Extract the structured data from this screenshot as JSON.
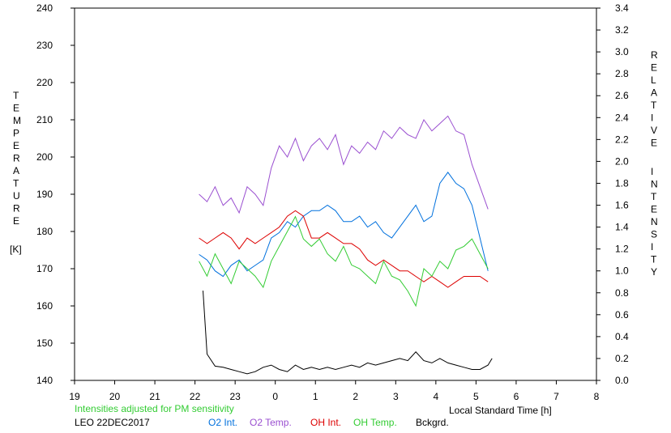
{
  "chart_data": {
    "type": "line",
    "left_axis": {
      "label_letters": [
        "T",
        "E",
        "M",
        "P",
        "E",
        "R",
        "A",
        "T",
        "U",
        "R",
        "E"
      ],
      "unit": "[K]",
      "ylim": [
        140,
        240
      ],
      "ticks": [
        "140",
        "150",
        "160",
        "170",
        "180",
        "190",
        "200",
        "210",
        "220",
        "230",
        "240"
      ]
    },
    "right_axis": {
      "label_letters_1": [
        "R",
        "E",
        "L",
        "A",
        "T",
        "I",
        "V",
        "E"
      ],
      "label_letters_2": [
        "I",
        "N",
        "T",
        "E",
        "N",
        "S",
        "I",
        "T",
        "Y"
      ],
      "ylim": [
        0,
        3.4
      ],
      "ticks": [
        "0.0",
        "0.2",
        "0.4",
        "0.6",
        "0.8",
        "1.0",
        "1.2",
        "1.4",
        "1.6",
        "1.8",
        "2.0",
        "2.2",
        "2.4",
        "2.6",
        "2.8",
        "3.0",
        "3.2",
        "3.4"
      ]
    },
    "x_axis": {
      "label": "Local Standard Time [h]",
      "ticks": [
        "19",
        "20",
        "21",
        "22",
        "23",
        "0",
        "1",
        "2",
        "3",
        "4",
        "5",
        "6",
        "7",
        "8"
      ]
    },
    "note": "Intensities adjusted for PM sensitivity",
    "station": "LEO 22DEC2017",
    "legend": [
      {
        "name": "O2 Int.",
        "color": "#0070dd"
      },
      {
        "name": "O2 Temp.",
        "color": "#9a4fd0"
      },
      {
        "name": "OH Int.",
        "color": "#dd0000"
      },
      {
        "name": "OH Temp.",
        "color": "#33cc33"
      },
      {
        "name": "Bckgrd.",
        "color": "#000000"
      }
    ],
    "x_range_hours": [
      -5,
      8
    ],
    "series": [
      {
        "name": "O2 Temp.",
        "axis": "left",
        "color": "#9a4fd0",
        "x": [
          -1.9,
          -1.7,
          -1.5,
          -1.3,
          -1.1,
          -0.9,
          -0.7,
          -0.5,
          -0.3,
          -0.1,
          0.1,
          0.3,
          0.5,
          0.7,
          0.9,
          1.1,
          1.3,
          1.5,
          1.7,
          1.9,
          2.1,
          2.3,
          2.5,
          2.7,
          2.9,
          3.1,
          3.3,
          3.5,
          3.7,
          3.9,
          4.1,
          4.3,
          4.5,
          4.7,
          4.9,
          5.1,
          5.3
        ],
        "y": [
          190,
          188,
          192,
          187,
          189,
          185,
          192,
          190,
          187,
          197,
          203,
          200,
          205,
          199,
          203,
          205,
          202,
          206,
          198,
          203,
          201,
          204,
          202,
          207,
          205,
          208,
          206,
          205,
          210,
          207,
          209,
          211,
          207,
          206,
          198,
          192,
          186
        ]
      },
      {
        "name": "O2 Int.",
        "axis": "right",
        "color": "#0070dd",
        "x": [
          -1.9,
          -1.7,
          -1.5,
          -1.3,
          -1.1,
          -0.9,
          -0.7,
          -0.5,
          -0.3,
          -0.1,
          0.1,
          0.3,
          0.5,
          0.7,
          0.9,
          1.1,
          1.3,
          1.5,
          1.7,
          1.9,
          2.1,
          2.3,
          2.5,
          2.7,
          2.9,
          3.1,
          3.3,
          3.5,
          3.7,
          3.9,
          4.1,
          4.3,
          4.5,
          4.7,
          4.9,
          5.1,
          5.3
        ],
        "y": [
          1.15,
          1.1,
          1.0,
          0.95,
          1.05,
          1.1,
          1.0,
          1.05,
          1.1,
          1.3,
          1.35,
          1.45,
          1.4,
          1.5,
          1.55,
          1.55,
          1.6,
          1.55,
          1.45,
          1.45,
          1.5,
          1.4,
          1.45,
          1.35,
          1.3,
          1.4,
          1.5,
          1.6,
          1.45,
          1.5,
          1.8,
          1.9,
          1.8,
          1.75,
          1.6,
          1.3,
          1.0
        ]
      },
      {
        "name": "OH Int.",
        "axis": "right",
        "color": "#dd0000",
        "x": [
          -1.9,
          -1.7,
          -1.5,
          -1.3,
          -1.1,
          -0.9,
          -0.7,
          -0.5,
          -0.3,
          -0.1,
          0.1,
          0.3,
          0.5,
          0.7,
          0.9,
          1.1,
          1.3,
          1.5,
          1.7,
          1.9,
          2.1,
          2.3,
          2.5,
          2.7,
          2.9,
          3.1,
          3.3,
          3.5,
          3.7,
          3.9,
          4.1,
          4.3,
          4.5,
          4.7,
          4.9,
          5.1,
          5.3
        ],
        "y": [
          1.3,
          1.25,
          1.3,
          1.35,
          1.3,
          1.2,
          1.3,
          1.25,
          1.3,
          1.35,
          1.4,
          1.5,
          1.55,
          1.5,
          1.3,
          1.3,
          1.35,
          1.3,
          1.25,
          1.25,
          1.2,
          1.1,
          1.05,
          1.1,
          1.05,
          1.0,
          1.0,
          0.95,
          0.9,
          0.95,
          0.9,
          0.85,
          0.9,
          0.95,
          0.95,
          0.95,
          0.9
        ]
      },
      {
        "name": "OH Temp.",
        "axis": "left",
        "color": "#33cc33",
        "x": [
          -1.9,
          -1.7,
          -1.5,
          -1.3,
          -1.1,
          -0.9,
          -0.7,
          -0.5,
          -0.3,
          -0.1,
          0.1,
          0.3,
          0.5,
          0.7,
          0.9,
          1.1,
          1.3,
          1.5,
          1.7,
          1.9,
          2.1,
          2.3,
          2.5,
          2.7,
          2.9,
          3.1,
          3.3,
          3.5,
          3.7,
          3.9,
          4.1,
          4.3,
          4.5,
          4.7,
          4.9,
          5.1,
          5.3
        ],
        "y": [
          172,
          168,
          174,
          170,
          166,
          172,
          170,
          168,
          165,
          172,
          176,
          180,
          184,
          178,
          176,
          178,
          174,
          172,
          176,
          171,
          170,
          168,
          166,
          172,
          168,
          167,
          164,
          160,
          170,
          168,
          172,
          170,
          175,
          176,
          178,
          174,
          170
        ]
      },
      {
        "name": "Bckgrd.",
        "axis": "right",
        "color": "#000000",
        "x": [
          -1.8,
          -1.7,
          -1.5,
          -1.3,
          -1.1,
          -0.9,
          -0.7,
          -0.5,
          -0.3,
          -0.1,
          0.1,
          0.3,
          0.5,
          0.7,
          0.9,
          1.1,
          1.3,
          1.5,
          1.7,
          1.9,
          2.1,
          2.3,
          2.5,
          2.7,
          2.9,
          3.1,
          3.3,
          3.5,
          3.7,
          3.9,
          4.1,
          4.3,
          4.5,
          4.7,
          4.9,
          5.1,
          5.3,
          5.4
        ],
        "y": [
          0.82,
          0.24,
          0.13,
          0.12,
          0.1,
          0.08,
          0.06,
          0.08,
          0.12,
          0.14,
          0.1,
          0.08,
          0.14,
          0.1,
          0.12,
          0.1,
          0.12,
          0.1,
          0.12,
          0.14,
          0.12,
          0.16,
          0.14,
          0.16,
          0.18,
          0.2,
          0.18,
          0.26,
          0.18,
          0.16,
          0.2,
          0.16,
          0.14,
          0.12,
          0.1,
          0.1,
          0.14,
          0.2
        ]
      }
    ]
  }
}
